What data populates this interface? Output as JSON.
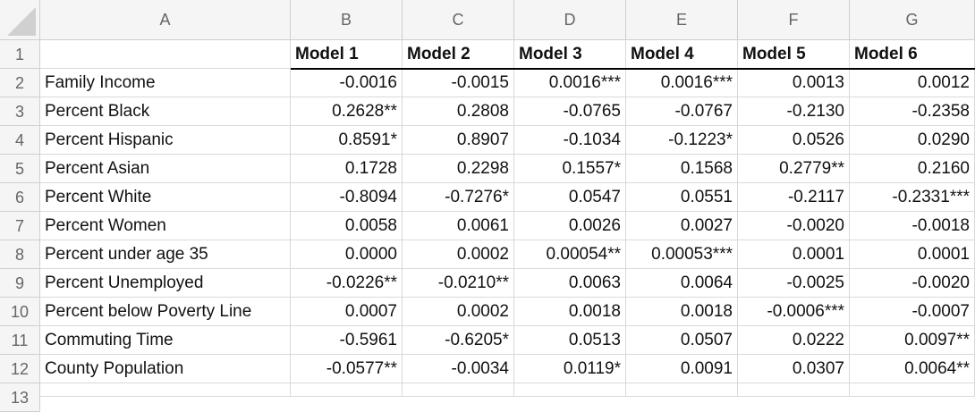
{
  "columns": [
    "A",
    "B",
    "C",
    "D",
    "E",
    "F",
    "G"
  ],
  "row_numbers": [
    "1",
    "2",
    "3",
    "4",
    "5",
    "6",
    "7",
    "8",
    "9",
    "10",
    "11",
    "12",
    "13"
  ],
  "table": {
    "header": [
      "Model 1",
      "Model 2",
      "Model 3",
      "Model 4",
      "Model 5",
      "Model 6"
    ],
    "rows": [
      [
        "Family Income",
        "-0.0016",
        "-0.0015",
        "0.0016***",
        "0.0016***",
        "0.0013",
        "0.0012"
      ],
      [
        "Percent Black",
        "0.2628**",
        "0.2808",
        "-0.0765",
        "-0.0767",
        "-0.2130",
        "-0.2358"
      ],
      [
        "Percent Hispanic",
        "0.8591*",
        "0.8907",
        "-0.1034",
        "-0.1223*",
        "0.0526",
        "0.0290"
      ],
      [
        "Percent Asian",
        "0.1728",
        "0.2298",
        "0.1557*",
        "0.1568",
        "0.2779**",
        "0.2160"
      ],
      [
        "Percent White",
        "-0.8094",
        "-0.7276*",
        "0.0547",
        "0.0551",
        "-0.2117",
        "-0.2331***"
      ],
      [
        "Percent Women",
        "0.0058",
        "0.0061",
        "0.0026",
        "0.0027",
        "-0.0020",
        "-0.0018"
      ],
      [
        "Percent under age 35",
        "0.0000",
        "0.0002",
        "0.00054**",
        "0.00053***",
        "0.0001",
        "0.0001"
      ],
      [
        "Percent Unemployed",
        "-0.0226**",
        "-0.0210**",
        "0.0063",
        "0.0064",
        "-0.0025",
        "-0.0020"
      ],
      [
        "Percent below Poverty Line",
        "0.0007",
        "0.0002",
        "0.0018",
        "0.0018",
        "-0.0006***",
        "-0.0007"
      ],
      [
        "Commuting Time",
        "-0.5961",
        "-0.6205*",
        "0.0513",
        "0.0507",
        "0.0222",
        "0.0097**"
      ],
      [
        "County Population",
        "-0.0577**",
        "-0.0034",
        "0.0119*",
        "0.0091",
        "0.0307",
        "0.0064**"
      ]
    ]
  }
}
